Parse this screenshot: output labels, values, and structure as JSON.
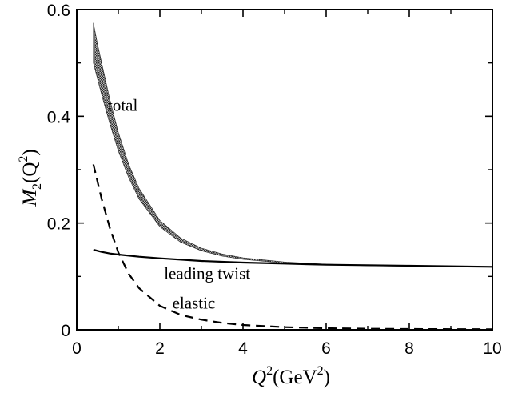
{
  "chart_data": {
    "type": "line",
    "xlabel": {
      "main": "Q",
      "sup": "2",
      "unit_pre": "(GeV",
      "unit_sup": "2",
      "unit_post": ")"
    },
    "ylabel": {
      "main": "M",
      "sub": "2",
      "arg_pre": "(Q",
      "arg_sup": "2",
      "arg_post": ")"
    },
    "xlim": [
      0,
      10
    ],
    "ylim": [
      0,
      0.6
    ],
    "x_ticks": [
      0,
      2,
      4,
      6,
      8,
      10
    ],
    "x_tick_labels": [
      "0",
      "2",
      "4",
      "6",
      "8",
      "10"
    ],
    "y_ticks": [
      0,
      0.2,
      0.4,
      0.6
    ],
    "y_tick_labels": [
      "0",
      "0.2",
      "0.4",
      "0.6"
    ],
    "grid": false,
    "series": [
      {
        "style": "band",
        "x": [
          0.4,
          0.5,
          0.6,
          0.8,
          1.0,
          1.25,
          1.5,
          2.0,
          2.5,
          3.0,
          3.5,
          4.0,
          5.0,
          6.0,
          7.0,
          8.0
        ],
        "upper": [
          0.575,
          0.535,
          0.5,
          0.43,
          0.37,
          0.31,
          0.265,
          0.205,
          0.172,
          0.153,
          0.142,
          0.135,
          0.127,
          0.123,
          0.121,
          0.12
        ],
        "lower": [
          0.5,
          0.47,
          0.44,
          0.385,
          0.335,
          0.285,
          0.245,
          0.193,
          0.164,
          0.148,
          0.138,
          0.132,
          0.125,
          0.122,
          0.12,
          0.119
        ]
      },
      {
        "style": "solid",
        "x": [
          0.4,
          0.6,
          0.8,
          1.0,
          1.5,
          2.0,
          3.0,
          4.0,
          5.0,
          6.0,
          8.0,
          10.0
        ],
        "values": [
          0.15,
          0.146,
          0.143,
          0.141,
          0.137,
          0.134,
          0.129,
          0.126,
          0.124,
          0.122,
          0.12,
          0.118
        ]
      },
      {
        "style": "dashed",
        "x": [
          0.4,
          0.6,
          0.8,
          1.0,
          1.25,
          1.5,
          2.0,
          2.5,
          3.0,
          3.5,
          4.0,
          5.0,
          6.0,
          7.0,
          8.0,
          10.0
        ],
        "values": [
          0.31,
          0.245,
          0.19,
          0.145,
          0.105,
          0.078,
          0.045,
          0.028,
          0.019,
          0.013,
          0.009,
          0.005,
          0.003,
          0.002,
          0.0015,
          0.001
        ]
      }
    ],
    "annotations": [
      {
        "text": "total",
        "x": 0.75,
        "y": 0.41
      },
      {
        "text": "leading twist",
        "x": 2.1,
        "y": 0.095
      },
      {
        "text": "elastic",
        "x": 2.3,
        "y": 0.04
      }
    ]
  }
}
